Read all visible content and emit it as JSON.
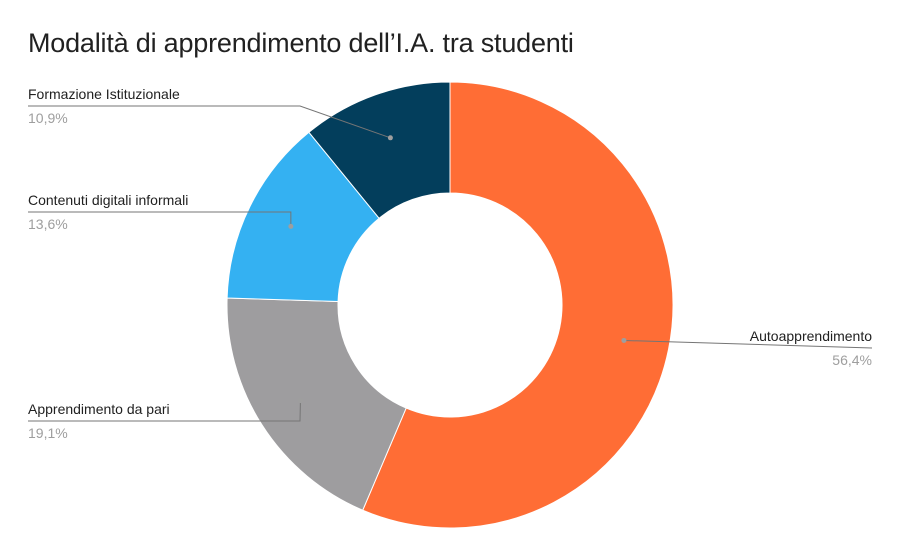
{
  "chart_data": {
    "type": "pie",
    "donut": true,
    "title": "Modalità di apprendimento dell’I.A. tra studenti",
    "legend": "none",
    "slices": [
      {
        "label": "Autoapprendimento",
        "value": 56.4,
        "value_label": "56,4%",
        "color": "#FF6D35"
      },
      {
        "label": "Apprendimento da pari",
        "value": 19.1,
        "value_label": "19,1%",
        "color": "#9E9D9F"
      },
      {
        "label": "Contenuti digitali informali",
        "value": 13.6,
        "value_label": "13,6%",
        "color": "#34B1F2"
      },
      {
        "label": "Formazione Istituzionale",
        "value": 10.9,
        "value_label": "10,9%",
        "color": "#033E5C"
      }
    ]
  }
}
